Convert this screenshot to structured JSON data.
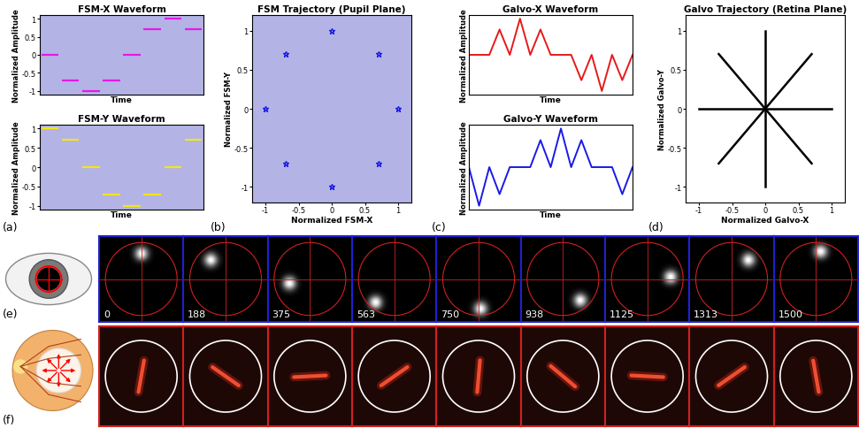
{
  "chart_data": [
    {
      "type": "step_segments",
      "title": "FSM-X Waveform",
      "x_label": "Time",
      "y_label": "Normalized Amplitude",
      "annotation": "(a)",
      "x": [
        0,
        1,
        2,
        3,
        4,
        5,
        6,
        7
      ],
      "values": [
        0,
        -0.7,
        -1,
        -0.7,
        0,
        0.7,
        1,
        0.7
      ],
      "color": "#e619e6",
      "xlim": [
        0,
        8
      ],
      "ylim": [
        -1.1,
        1.1
      ],
      "yticks": [
        -1,
        -0.5,
        0,
        0.5,
        1
      ],
      "tick_labels": "y"
    },
    {
      "type": "step_segments",
      "title": "FSM-Y Waveform",
      "x_label": "Time",
      "y_label": "Normalized Amplitude",
      "x": [
        0,
        1,
        2,
        3,
        4,
        5,
        6,
        7
      ],
      "values": [
        1,
        0.7,
        0,
        -0.7,
        -1,
        -0.7,
        0,
        0.7
      ],
      "color": "#f2e61a",
      "xlim": [
        0,
        8
      ],
      "ylim": [
        -1.1,
        1.1
      ],
      "yticks": [
        -1,
        -0.5,
        0,
        0.5,
        1
      ],
      "tick_labels": "y"
    },
    {
      "type": "scatter",
      "title": "FSM Trajectory (Pupil Plane)",
      "x_label": "Normalized FSM-X",
      "y_label": "Normalized FSM-Y",
      "annotation": "(b)",
      "x": [
        0,
        -0.7,
        -1,
        -0.7,
        0,
        0.7,
        1,
        0.7
      ],
      "values": [
        1,
        0.7,
        0,
        -0.7,
        -1,
        -0.7,
        0,
        0.7
      ],
      "color": "#1a1ae6",
      "marker": "star",
      "xlim": [
        -1.2,
        1.2
      ],
      "xticks": [
        -1,
        -0.5,
        0,
        0.5,
        1
      ],
      "ylim": [
        -1.2,
        1.2
      ],
      "yticks": [
        -1,
        -0.5,
        0,
        0.5,
        1
      ]
    },
    {
      "type": "line",
      "title": "Galvo-X Waveform",
      "x_label": "Time",
      "y_label": "Normalized Amplitude",
      "annotation": "(c)",
      "x": [
        0,
        0.5,
        1,
        1.5,
        2,
        2.5,
        3,
        3.5,
        4,
        4.5,
        5,
        5.5,
        6,
        6.5,
        7,
        7.5,
        8
      ],
      "values": [
        0,
        0,
        0,
        0.7,
        0,
        1,
        0,
        0.7,
        0,
        0,
        0,
        -0.7,
        0,
        -1,
        0,
        -0.7,
        0
      ],
      "color": "#e61919",
      "xlim": [
        0,
        8
      ],
      "ylim": [
        -1.1,
        1.1
      ],
      "tick_labels": false
    },
    {
      "type": "line",
      "title": "Galvo-Y Waveform",
      "x_label": "Time",
      "y_label": "Normalized Amplitude",
      "x": [
        0,
        0.5,
        1,
        1.5,
        2,
        2.5,
        3,
        3.5,
        4,
        4.5,
        5,
        5.5,
        6,
        6.5,
        7,
        7.5,
        8
      ],
      "values": [
        0,
        -1,
        0,
        -0.7,
        0,
        0,
        0,
        0.7,
        0,
        1,
        0,
        0.7,
        0,
        0,
        0,
        -0.7,
        0
      ],
      "color": "#1a1ae6",
      "xlim": [
        0,
        8
      ],
      "ylim": [
        -1.1,
        1.1
      ],
      "tick_labels": false
    },
    {
      "type": "rays",
      "title": "Galvo Trajectory (Retina Plane)",
      "x_label": "Normalized Galvo-X",
      "y_label": "Normalized Galvo-Y",
      "annotation": "(d)",
      "origin": [
        0,
        0
      ],
      "x": [
        0,
        0.7,
        1,
        0.7,
        0,
        -0.7,
        -1,
        -0.7
      ],
      "values": [
        -1,
        -0.7,
        0,
        0.7,
        1,
        0.7,
        0,
        -0.7
      ],
      "color": "#000000",
      "xlim": [
        -1.2,
        1.2
      ],
      "xticks": [
        -1,
        -0.5,
        0,
        0.5,
        1
      ],
      "ylim": [
        -1.2,
        1.2
      ],
      "yticks": [
        -1,
        -0.5,
        0,
        0.5,
        1
      ]
    }
  ],
  "image_rows": [
    {
      "annotation": "(e)",
      "labels": [
        0,
        188,
        375,
        563,
        750,
        938,
        1125,
        1313,
        1500
      ],
      "spot_x": [
        0,
        -0.35,
        -0.5,
        -0.45,
        0.05,
        0.4,
        0.55,
        0.4,
        0.1
      ],
      "spot_y": [
        0.6,
        0.45,
        -0.1,
        -0.55,
        -0.7,
        -0.5,
        0.05,
        0.45,
        0.65
      ]
    },
    {
      "annotation": "(f)",
      "angles": [
        80,
        -35,
        3,
        35,
        85,
        -40,
        -3,
        35,
        -80
      ]
    }
  ]
}
